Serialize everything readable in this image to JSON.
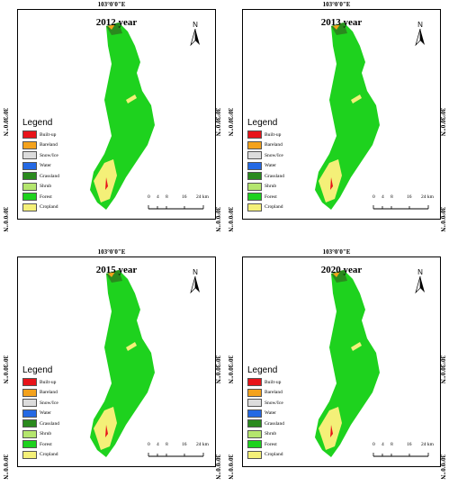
{
  "panels": [
    {
      "year_title": "2012 year"
    },
    {
      "year_title": "2013 year"
    },
    {
      "year_title": "2015 year"
    },
    {
      "year_title": "2020 year"
    }
  ],
  "axis_labels": {
    "longitude": "103°0'0\"E",
    "latitude_upper": "30°30'0\"N",
    "latitude_lower": "30°0'0\"N"
  },
  "north_arrow": {
    "letter": "N"
  },
  "legend": {
    "title": "Legend",
    "items": [
      {
        "label": "Built-up",
        "color": "#e8141a"
      },
      {
        "label": "Bareland",
        "color": "#f4a21c"
      },
      {
        "label": "Snow/Ice",
        "color": "#dcdcdc"
      },
      {
        "label": "Water",
        "color": "#2469e4"
      },
      {
        "label": "Grassland",
        "color": "#2a8a1e"
      },
      {
        "label": "Shrub",
        "color": "#b4e66e"
      },
      {
        "label": "Forest",
        "color": "#1ed21e"
      },
      {
        "label": "Cropland",
        "color": "#f4f078"
      }
    ]
  },
  "scale_bar": {
    "ticks": [
      "0",
      "4",
      "8",
      "16",
      "24 km"
    ]
  }
}
